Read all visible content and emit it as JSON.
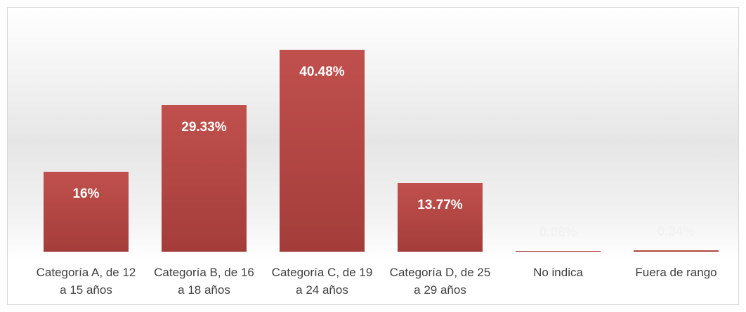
{
  "chart_data": {
    "type": "bar",
    "categories": [
      "Categoría A, de 12 a 15 años",
      "Categoría B, de 16 a 18 años",
      "Categoría C, de 19 a 24 años",
      "Categoría D, de 25 a 29 años",
      "No indica",
      "Fuera de rango"
    ],
    "values": [
      16,
      29.33,
      40.48,
      13.77,
      0.08,
      0.34
    ],
    "value_labels": [
      "16%",
      "29.33%",
      "40.48%",
      "13.77%",
      "0.08%",
      "0.34%"
    ],
    "color": "#c0504d",
    "ylim": [
      0,
      45
    ]
  }
}
